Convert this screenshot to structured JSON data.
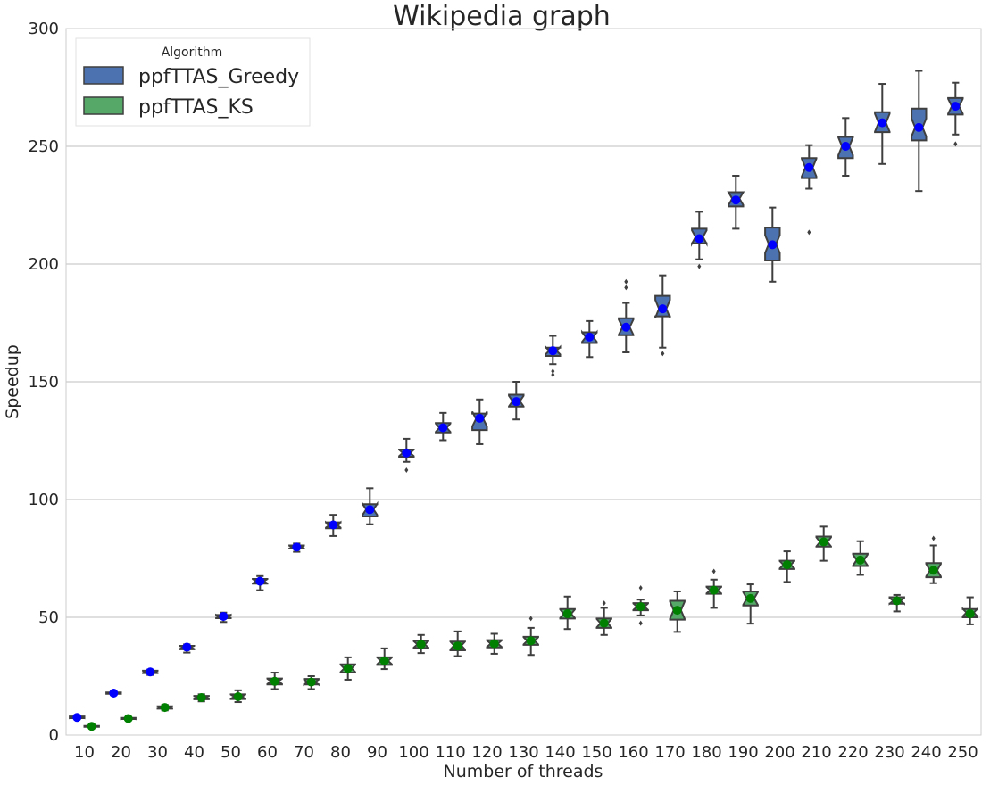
{
  "chart_data": {
    "type": "box",
    "title": "Wikipedia graph",
    "xlabel": "Number of threads",
    "ylabel": "Speedup",
    "ylim": [
      0,
      300
    ],
    "yticks": [
      0,
      50,
      100,
      150,
      200,
      250,
      300
    ],
    "grid": "horizontal",
    "legend": {
      "title": "Algorithm",
      "position": "top-left"
    },
    "categories": [
      "10",
      "20",
      "30",
      "40",
      "50",
      "60",
      "70",
      "80",
      "90",
      "100",
      "110",
      "120",
      "130",
      "140",
      "150",
      "160",
      "170",
      "180",
      "190",
      "200",
      "210",
      "220",
      "230",
      "240",
      "250"
    ],
    "series": [
      {
        "name": "ppfTTAS_Greedy",
        "color": "#4c72b0",
        "mean_color": "#0000ff",
        "boxes": [
          {
            "min": 7,
            "q1": 7.2,
            "median": 7.5,
            "q3": 7.9,
            "max": 8.2,
            "mean": 7.5,
            "outliers": []
          },
          {
            "min": 17,
            "q1": 17.5,
            "median": 17.8,
            "q3": 18.1,
            "max": 18.5,
            "mean": 17.8,
            "outliers": []
          },
          {
            "min": 25.5,
            "q1": 26.3,
            "median": 26.8,
            "q3": 27.3,
            "max": 27.8,
            "mean": 26.8,
            "outliers": []
          },
          {
            "min": 35,
            "q1": 36.4,
            "median": 37.2,
            "q3": 37.9,
            "max": 38.5,
            "mean": 37.3,
            "outliers": []
          },
          {
            "min": 48,
            "q1": 49.6,
            "median": 50.4,
            "q3": 51,
            "max": 52,
            "mean": 50.4,
            "outliers": []
          },
          {
            "min": 61.5,
            "q1": 64.3,
            "median": 65.3,
            "q3": 66.3,
            "max": 67.5,
            "mean": 65.3,
            "outliers": []
          },
          {
            "min": 77.8,
            "q1": 79.2,
            "median": 79.8,
            "q3": 80.5,
            "max": 81.3,
            "mean": 79.8,
            "outliers": []
          },
          {
            "min": 84.5,
            "q1": 87.8,
            "median": 89.2,
            "q3": 90.3,
            "max": 93.5,
            "mean": 89.2,
            "outliers": []
          },
          {
            "min": 89.5,
            "q1": 92.8,
            "median": 95.8,
            "q3": 98,
            "max": 104.8,
            "mean": 95.7,
            "outliers": []
          },
          {
            "min": 116,
            "q1": 118.2,
            "median": 119.8,
            "q3": 121.2,
            "max": 125.8,
            "mean": 119.8,
            "outliers": [
              112.5
            ]
          },
          {
            "min": 125.2,
            "q1": 128.5,
            "median": 130.5,
            "q3": 132.5,
            "max": 136.8,
            "mean": 130.5,
            "outliers": []
          },
          {
            "min": 123.5,
            "q1": 129.5,
            "median": 134.2,
            "q3": 136.5,
            "max": 142.5,
            "mean": 134.5,
            "outliers": []
          },
          {
            "min": 134,
            "q1": 139.5,
            "median": 141.8,
            "q3": 144.5,
            "max": 150,
            "mean": 141.6,
            "outliers": []
          },
          {
            "min": 157.5,
            "q1": 161,
            "median": 163.2,
            "q3": 164.5,
            "max": 169.5,
            "mean": 163.2,
            "outliers": [
              153,
              154.5
            ]
          },
          {
            "min": 160.5,
            "q1": 166.5,
            "median": 169,
            "q3": 171,
            "max": 175.8,
            "mean": 169,
            "outliers": []
          },
          {
            "min": 162.5,
            "q1": 169.8,
            "median": 173.2,
            "q3": 177,
            "max": 183.5,
            "mean": 173.2,
            "outliers": [
              190,
              192.5
            ]
          },
          {
            "min": 164.5,
            "q1": 177.8,
            "median": 181,
            "q3": 186.5,
            "max": 195.2,
            "mean": 181,
            "outliers": [
              162
            ]
          },
          {
            "min": 202,
            "q1": 208.8,
            "median": 211.5,
            "q3": 215,
            "max": 222.2,
            "mean": 210.8,
            "outliers": [
              199
            ]
          },
          {
            "min": 215,
            "q1": 224.5,
            "median": 227.8,
            "q3": 230.5,
            "max": 237.5,
            "mean": 227.2,
            "outliers": []
          },
          {
            "min": 192.5,
            "q1": 201.5,
            "median": 208.5,
            "q3": 215.5,
            "max": 224,
            "mean": 208.2,
            "outliers": []
          },
          {
            "min": 232,
            "q1": 236.5,
            "median": 241,
            "q3": 245,
            "max": 250.5,
            "mean": 241,
            "outliers": [
              213.5
            ]
          },
          {
            "min": 237.5,
            "q1": 245,
            "median": 250,
            "q3": 254,
            "max": 262,
            "mean": 250,
            "outliers": []
          },
          {
            "min": 242.5,
            "q1": 256,
            "median": 260,
            "q3": 264.5,
            "max": 276.5,
            "mean": 260,
            "outliers": []
          },
          {
            "min": 231,
            "q1": 252.5,
            "median": 258,
            "q3": 266,
            "max": 282,
            "mean": 258,
            "outliers": []
          },
          {
            "min": 255,
            "q1": 263.5,
            "median": 267,
            "q3": 270.5,
            "max": 277,
            "mean": 267,
            "outliers": [
              251
            ]
          }
        ]
      },
      {
        "name": "ppfTTAS_KS",
        "color": "#55a868",
        "mean_color": "#008000",
        "boxes": [
          {
            "min": 3.2,
            "q1": 3.5,
            "median": 3.7,
            "q3": 3.9,
            "max": 4.2,
            "mean": 3.7,
            "outliers": []
          },
          {
            "min": 6.5,
            "q1": 6.8,
            "median": 7,
            "q3": 7.3,
            "max": 7.6,
            "mean": 7,
            "outliers": []
          },
          {
            "min": 10.5,
            "q1": 11.2,
            "median": 11.7,
            "q3": 12.2,
            "max": 12.8,
            "mean": 11.7,
            "outliers": []
          },
          {
            "min": 14.3,
            "q1": 15.2,
            "median": 15.9,
            "q3": 16.6,
            "max": 17.3,
            "mean": 15.9,
            "outliers": []
          },
          {
            "min": 14,
            "q1": 15.3,
            "median": 16.3,
            "q3": 17.3,
            "max": 19,
            "mean": 16.3,
            "outliers": []
          },
          {
            "min": 19.5,
            "q1": 21.5,
            "median": 22.8,
            "q3": 24,
            "max": 26.5,
            "mean": 22.8,
            "outliers": []
          },
          {
            "min": 19.5,
            "q1": 21.5,
            "median": 22.5,
            "q3": 23.8,
            "max": 25,
            "mean": 22.5,
            "outliers": []
          },
          {
            "min": 23.5,
            "q1": 26.5,
            "median": 28.3,
            "q3": 30,
            "max": 33,
            "mean": 28.3,
            "outliers": []
          },
          {
            "min": 28,
            "q1": 29.8,
            "median": 31.5,
            "q3": 33,
            "max": 36.8,
            "mean": 31.5,
            "outliers": []
          },
          {
            "min": 34.8,
            "q1": 37,
            "median": 38.5,
            "q3": 40,
            "max": 42.5,
            "mean": 38.5,
            "outliers": []
          },
          {
            "min": 33.5,
            "q1": 36,
            "median": 38,
            "q3": 39.7,
            "max": 44,
            "mean": 37.8,
            "outliers": []
          },
          {
            "min": 34.5,
            "q1": 37.2,
            "median": 38.8,
            "q3": 40.3,
            "max": 43,
            "mean": 38.8,
            "outliers": []
          },
          {
            "min": 34,
            "q1": 38.3,
            "median": 40,
            "q3": 41.7,
            "max": 45.5,
            "mean": 40,
            "outliers": [
              49.5
            ]
          },
          {
            "min": 45,
            "q1": 49.5,
            "median": 51.5,
            "q3": 53.5,
            "max": 58.8,
            "mean": 51.5,
            "outliers": []
          },
          {
            "min": 42.5,
            "q1": 45.5,
            "median": 47.5,
            "q3": 49.5,
            "max": 54,
            "mean": 47.5,
            "outliers": [
              56
            ]
          },
          {
            "min": 50.8,
            "q1": 53,
            "median": 54.5,
            "q3": 56,
            "max": 57.5,
            "mean": 54.5,
            "outliers": [
              47.5,
              62.5
            ]
          },
          {
            "min": 43.8,
            "q1": 49,
            "median": 53,
            "q3": 57,
            "max": 61,
            "mean": 53,
            "outliers": []
          },
          {
            "min": 54,
            "q1": 60,
            "median": 61.5,
            "q3": 63,
            "max": 66,
            "mean": 61.5,
            "outliers": [
              69.5
            ]
          },
          {
            "min": 47.3,
            "q1": 55,
            "median": 58,
            "q3": 61,
            "max": 64,
            "mean": 58,
            "outliers": []
          },
          {
            "min": 65,
            "q1": 70.5,
            "median": 72.3,
            "q3": 74,
            "max": 78,
            "mean": 72.3,
            "outliers": []
          },
          {
            "min": 74,
            "q1": 80,
            "median": 82,
            "q3": 84.3,
            "max": 88.5,
            "mean": 82,
            "outliers": []
          },
          {
            "min": 68,
            "q1": 71.8,
            "median": 74.3,
            "q3": 77,
            "max": 82.3,
            "mean": 74.3,
            "outliers": []
          },
          {
            "min": 52.5,
            "q1": 55.8,
            "median": 57,
            "q3": 58.5,
            "max": 59.5,
            "mean": 57,
            "outliers": []
          },
          {
            "min": 64.5,
            "q1": 67,
            "median": 70,
            "q3": 73,
            "max": 80.5,
            "mean": 70,
            "outliers": [
              83.5
            ]
          },
          {
            "min": 47,
            "q1": 50,
            "median": 52,
            "q3": 53.5,
            "max": 58.5,
            "mean": 51.5,
            "outliers": []
          }
        ]
      }
    ]
  }
}
